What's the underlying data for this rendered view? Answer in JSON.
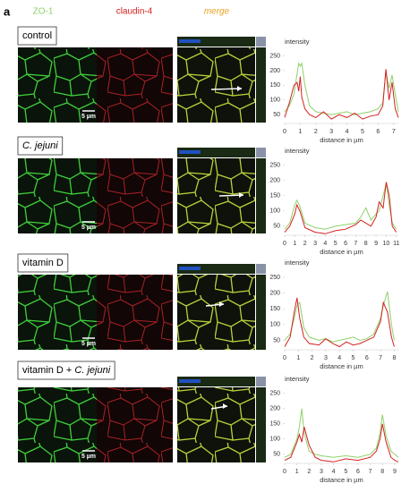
{
  "figure": {
    "panel_label": "a",
    "columns": [
      "ZO-1",
      "claudin-4",
      "merge"
    ],
    "rows": [
      {
        "label": [
          "control"
        ],
        "scale_bar": "5 µm",
        "chart": {
          "type": "line",
          "y_label": "intensity",
          "x_label": "distance in µm",
          "xlim": [
            0,
            7.3
          ],
          "ylim": [
            20,
            270
          ],
          "xticks": [
            0,
            1,
            2,
            3,
            4,
            5,
            6,
            7
          ],
          "yticks": [
            50,
            100,
            150,
            200,
            250
          ],
          "x": [
            0,
            0.3,
            0.6,
            0.8,
            0.9,
            1.0,
            1.1,
            1.3,
            1.6,
            2,
            2.5,
            3,
            3.5,
            4,
            4.5,
            5,
            5.5,
            6,
            6.3,
            6.5,
            6.7,
            6.9,
            7.1,
            7.3
          ],
          "series": [
            {
              "color": "#8fd16a",
              "values": [
                60,
                80,
                120,
                190,
                225,
                215,
                225,
                150,
                80,
                60,
                55,
                50,
                55,
                60,
                50,
                55,
                60,
                70,
                90,
                195,
                140,
                185,
                120,
                60
              ]
            },
            {
              "color": "#d62020",
              "values": [
                40,
                90,
                150,
                160,
                130,
                180,
                110,
                70,
                50,
                40,
                60,
                35,
                50,
                40,
                55,
                35,
                45,
                50,
                80,
                205,
                100,
                160,
                70,
                40
              ]
            }
          ]
        }
      },
      {
        "label": [
          "C. jejuni"
        ],
        "scale_bar": "5 µm",
        "chart": {
          "type": "line",
          "y_label": "intensity",
          "x_label": "distance in µm",
          "xlim": [
            0,
            11.2
          ],
          "ylim": [
            20,
            270
          ],
          "xticks": [
            0,
            1,
            2,
            3,
            4,
            5,
            6,
            7,
            8,
            9,
            10,
            11
          ],
          "yticks": [
            50,
            100,
            150,
            200,
            250
          ],
          "x": [
            0,
            0.5,
            1,
            1.2,
            1.5,
            2,
            3,
            4,
            5,
            6,
            7,
            7.5,
            8,
            8.5,
            9,
            9.3,
            9.7,
            10,
            10.3,
            10.6,
            11
          ],
          "series": [
            {
              "color": "#8fd16a",
              "values": [
                40,
                60,
                120,
                135,
                115,
                60,
                45,
                40,
                50,
                55,
                60,
                80,
                110,
                70,
                90,
                100,
                150,
                190,
                120,
                60,
                40
              ]
            },
            {
              "color": "#d62020",
              "values": [
                30,
                50,
                90,
                120,
                100,
                45,
                30,
                25,
                35,
                40,
                55,
                70,
                60,
                50,
                80,
                130,
                110,
                195,
                150,
                50,
                30
              ]
            }
          ]
        }
      },
      {
        "label": [
          "vitamin D"
        ],
        "scale_bar": "5 µm",
        "chart": {
          "type": "line",
          "y_label": "intensity",
          "x_label": "distance in µm",
          "xlim": [
            0,
            8.3
          ],
          "ylim": [
            20,
            270
          ],
          "xticks": [
            0,
            1,
            2,
            3,
            4,
            5,
            6,
            7,
            8
          ],
          "yticks": [
            50,
            100,
            150,
            200,
            250
          ],
          "x": [
            0,
            0.4,
            0.7,
            0.9,
            1.1,
            1.4,
            1.8,
            2.5,
            3,
            3.5,
            4,
            4.5,
            5,
            5.5,
            6,
            6.5,
            7,
            7.2,
            7.5,
            7.8,
            8
          ],
          "series": [
            {
              "color": "#8fd16a",
              "values": [
                50,
                70,
                120,
                160,
                170,
                90,
                60,
                50,
                55,
                45,
                50,
                55,
                60,
                50,
                55,
                70,
                120,
                160,
                205,
                100,
                50
              ]
            },
            {
              "color": "#d62020",
              "values": [
                30,
                60,
                140,
                185,
                120,
                60,
                40,
                35,
                55,
                40,
                30,
                45,
                35,
                40,
                50,
                60,
                110,
                170,
                140,
                60,
                30
              ]
            }
          ]
        }
      },
      {
        "label": [
          "vitamin D + ",
          "C. jejuni"
        ],
        "scale_bar": "5 µm",
        "chart": {
          "type": "line",
          "y_label": "intensity",
          "x_label": "distance in µm",
          "xlim": [
            0,
            9.3
          ],
          "ylim": [
            20,
            270
          ],
          "xticks": [
            0,
            1,
            2,
            3,
            4,
            5,
            6,
            7,
            8,
            9
          ],
          "yticks": [
            50,
            100,
            150,
            200,
            250
          ],
          "x": [
            0,
            0.5,
            1,
            1.2,
            1.4,
            1.6,
            2,
            2.5,
            3,
            4,
            5,
            6,
            7,
            7.5,
            7.8,
            8,
            8.3,
            8.7,
            9,
            9.3
          ],
          "series": [
            {
              "color": "#8fd16a",
              "values": [
                40,
                50,
                100,
                140,
                200,
                120,
                60,
                50,
                45,
                40,
                45,
                40,
                50,
                70,
                120,
                180,
                110,
                60,
                50,
                40
              ]
            },
            {
              "color": "#d62020",
              "values": [
                30,
                40,
                90,
                115,
                90,
                140,
                80,
                40,
                30,
                25,
                35,
                30,
                40,
                60,
                100,
                150,
                90,
                40,
                30,
                25
              ]
            }
          ]
        }
      }
    ]
  }
}
